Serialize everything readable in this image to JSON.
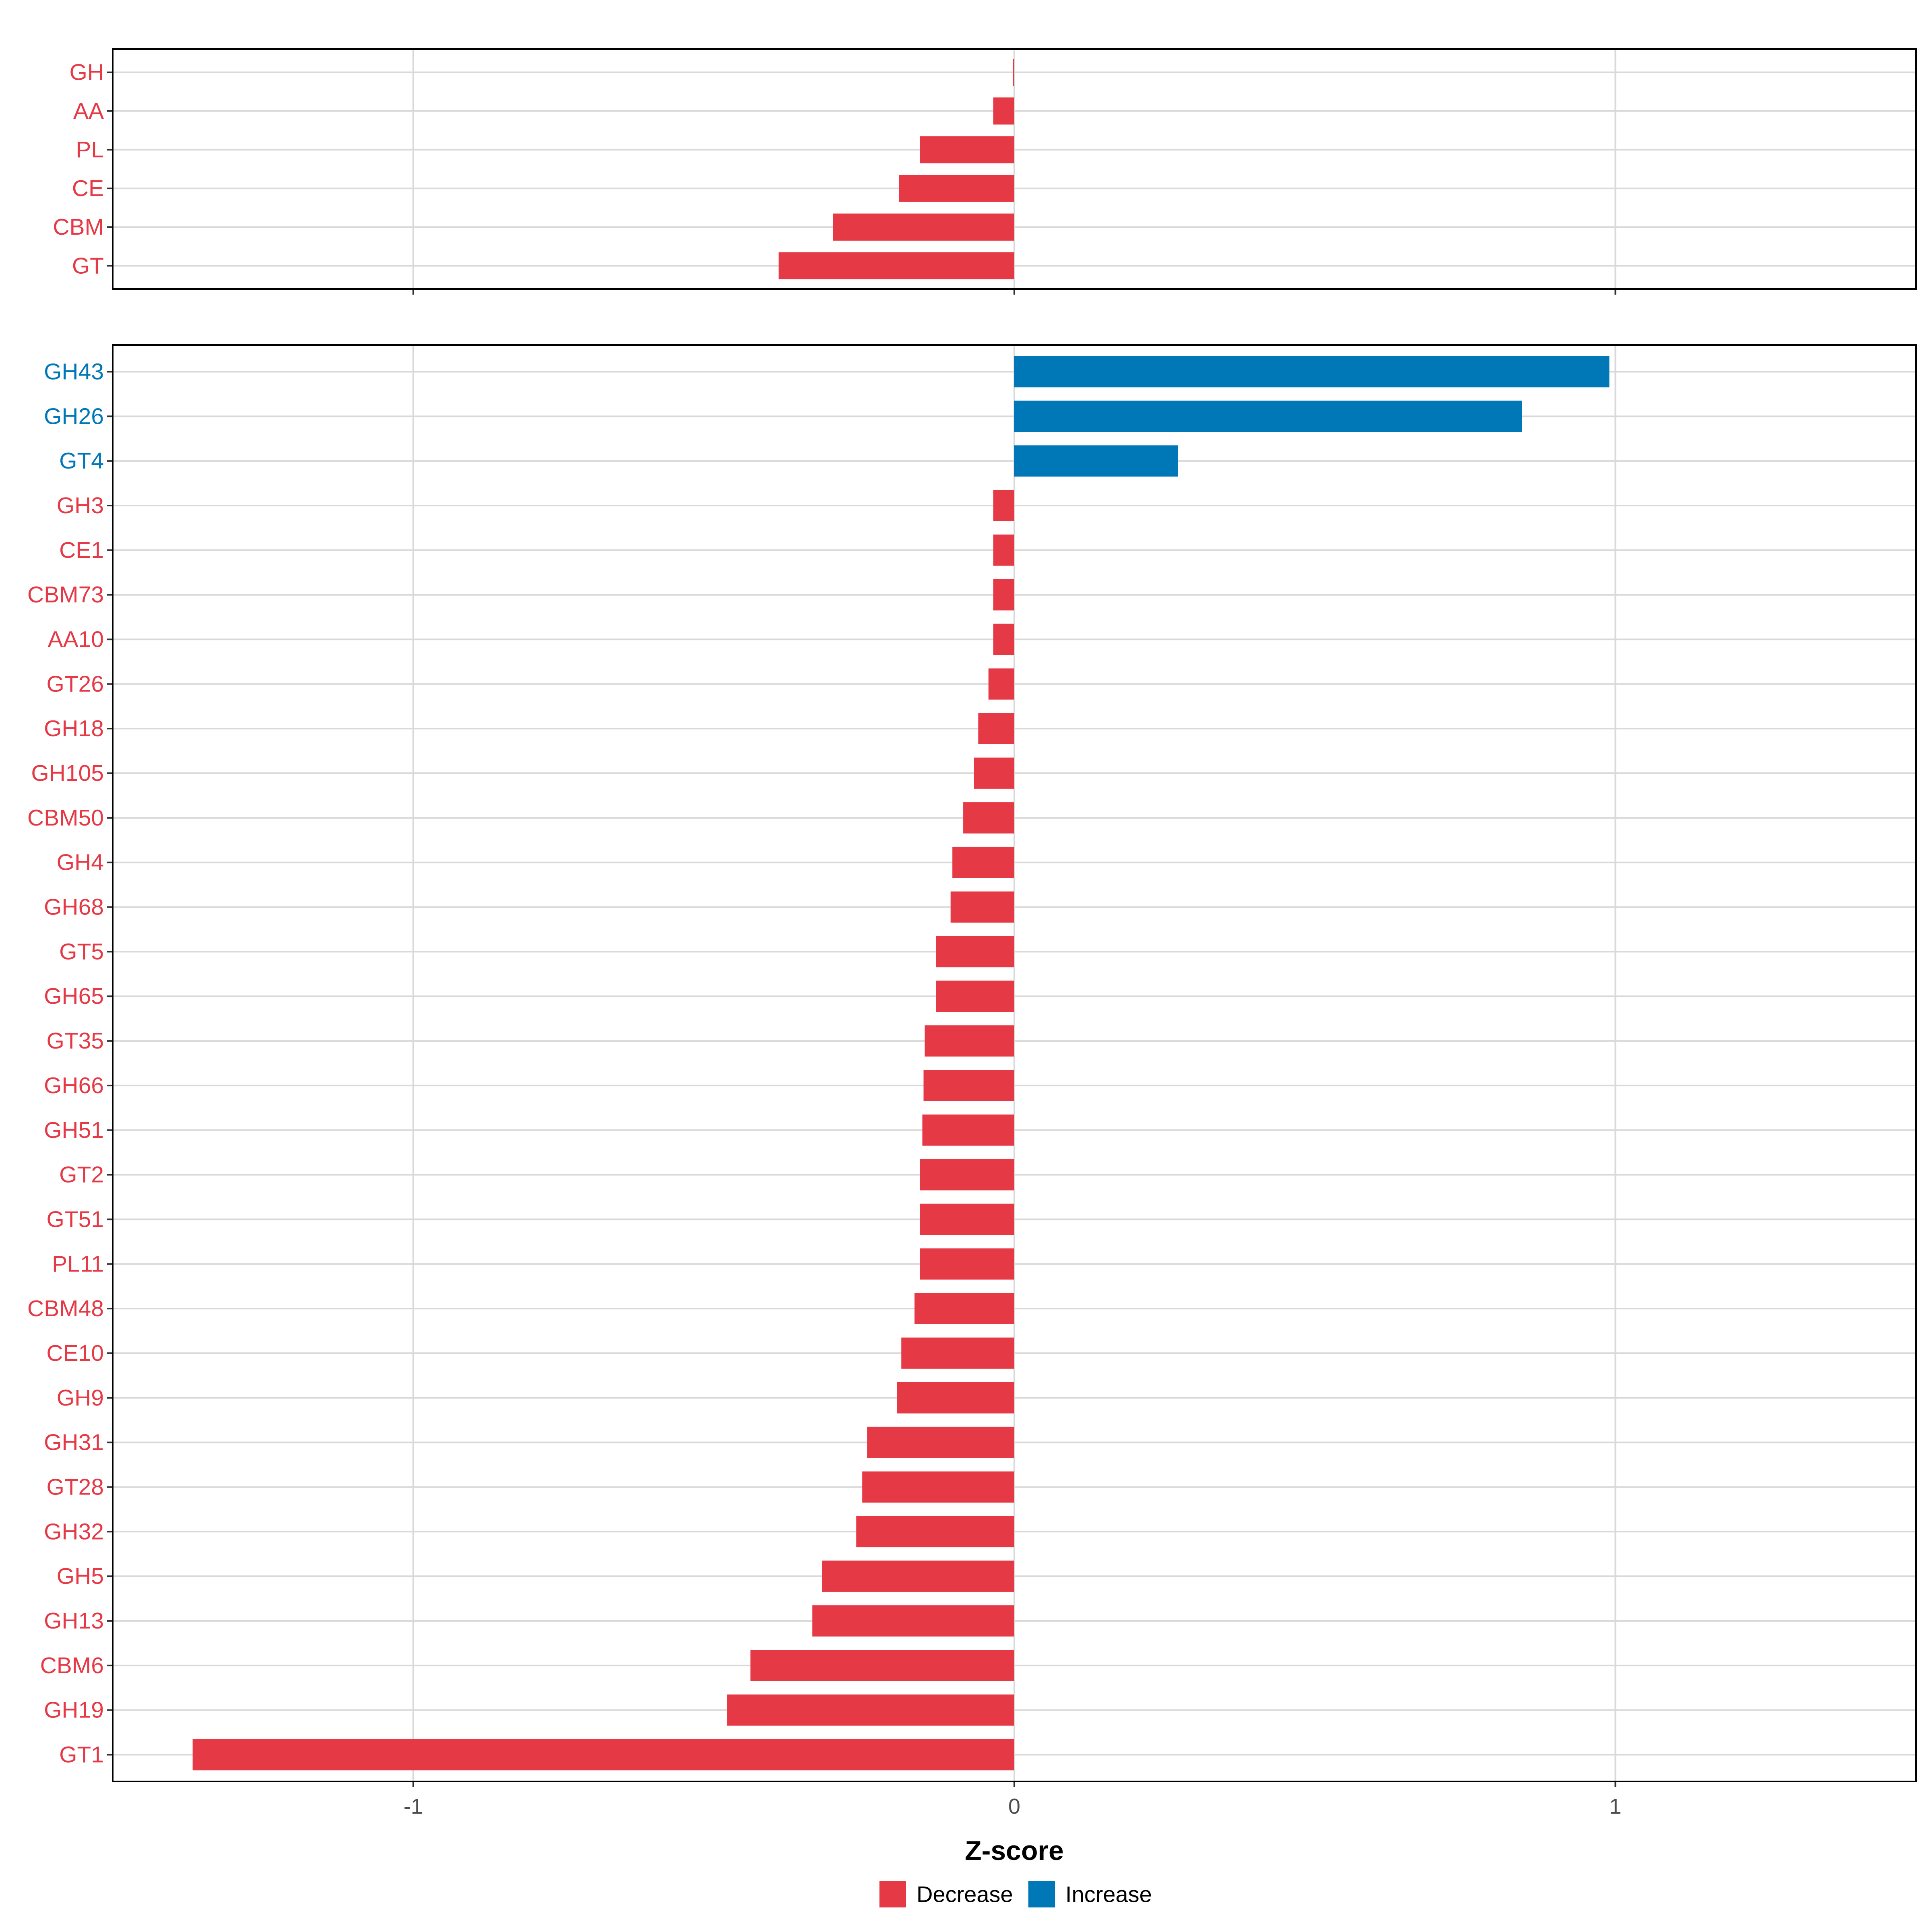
{
  "colors": {
    "decrease": "#E63946",
    "increase": "#0077B6",
    "grid": "#D9D9D9",
    "axis": "#000000",
    "tick_text": "#4D4D4D"
  },
  "chart_data": [
    {
      "type": "bar",
      "orientation": "horizontal",
      "panel": "top",
      "categories": [
        "GH",
        "AA",
        "PL",
        "CE",
        "CBM",
        "GT"
      ],
      "values": [
        -0.002,
        -0.035,
        -0.157,
        -0.192,
        -0.302,
        -0.392
      ],
      "groups": [
        "Decrease",
        "Decrease",
        "Decrease",
        "Decrease",
        "Decrease",
        "Decrease"
      ],
      "xlim": [
        -1.5,
        1.5
      ],
      "xticks": [
        -1,
        0,
        1
      ],
      "grid": true
    },
    {
      "type": "bar",
      "orientation": "horizontal",
      "panel": "bottom",
      "categories": [
        "GH43",
        "GH26",
        "GT4",
        "GH3",
        "CE1",
        "CBM73",
        "AA10",
        "GT26",
        "GH18",
        "GH105",
        "CBM50",
        "GH4",
        "GH68",
        "GT5",
        "GH65",
        "GT35",
        "GH66",
        "GH51",
        "GT2",
        "GT51",
        "PL11",
        "CBM48",
        "CE10",
        "GH9",
        "GH31",
        "GT28",
        "GH32",
        "GH5",
        "GH13",
        "CBM6",
        "GH19",
        "GT1"
      ],
      "values": [
        0.99,
        0.845,
        0.272,
        -0.035,
        -0.035,
        -0.035,
        -0.035,
        -0.043,
        -0.06,
        -0.067,
        -0.085,
        -0.103,
        -0.106,
        -0.13,
        -0.13,
        -0.149,
        -0.151,
        -0.153,
        -0.157,
        -0.157,
        -0.157,
        -0.166,
        -0.188,
        -0.195,
        -0.245,
        -0.253,
        -0.263,
        -0.32,
        -0.336,
        -0.439,
        -0.478,
        -1.367
      ],
      "groups": [
        "Increase",
        "Increase",
        "Increase",
        "Decrease",
        "Decrease",
        "Decrease",
        "Decrease",
        "Decrease",
        "Decrease",
        "Decrease",
        "Decrease",
        "Decrease",
        "Decrease",
        "Decrease",
        "Decrease",
        "Decrease",
        "Decrease",
        "Decrease",
        "Decrease",
        "Decrease",
        "Decrease",
        "Decrease",
        "Decrease",
        "Decrease",
        "Decrease",
        "Decrease",
        "Decrease",
        "Decrease",
        "Decrease",
        "Decrease",
        "Decrease",
        "Decrease"
      ],
      "xlim": [
        -1.5,
        1.5
      ],
      "xticks": [
        -1,
        0,
        1
      ],
      "grid": true,
      "xlabel": "Z-score"
    }
  ],
  "legend": {
    "placement": "bottom",
    "items": [
      {
        "label": "Decrease",
        "color_key": "decrease"
      },
      {
        "label": "Increase",
        "color_key": "increase"
      }
    ]
  }
}
